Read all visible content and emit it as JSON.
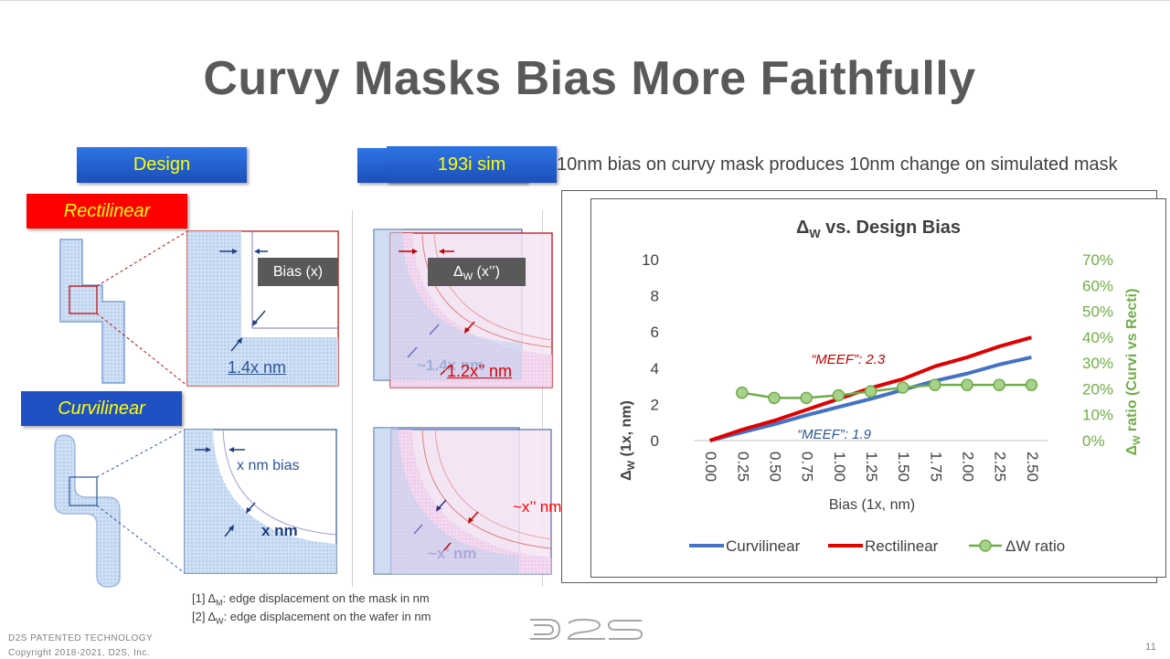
{
  "slide": {
    "title": "Curvy Masks Bias More Faithfully",
    "subtitle": "10nm bias on curvy mask produces 10nm change on simulated mask",
    "page_number": "11",
    "footer_line1": "D2S PATENTED TECHNOLOGY",
    "footer_line2": "Copyright 2018-2021, D2S, Inc.",
    "logo_text": "D2S"
  },
  "columns": {
    "design_label": "Design",
    "sim_label": "193i sim"
  },
  "rows": {
    "rect_label": "Rectilinear",
    "curv_label": "Curvilinear"
  },
  "annotations": {
    "bias_x": "Bias (x)",
    "dw_x_sym": "Δ",
    "dw_x_sub": "W",
    "dw_x_rest": " (x’’)",
    "rect_design_value": "1.4x nm",
    "rect_sim_ghost": "~1.4x nm",
    "rect_sim_value": "1.2x’’ nm",
    "curv_bias": "x nm bias",
    "curv_design_value": "x nm",
    "curv_sim_red": "~x’’ nm",
    "curv_sim_ghost": "~x’ nm"
  },
  "notes": {
    "n1_prefix": "[1] Δ",
    "n1_sub": "M",
    "n1_rest": ": edge displacement on the mask in nm",
    "n2_prefix": "[2] Δ",
    "n2_sub": "W",
    "n2_rest": ": edge displacement on the wafer in nm"
  },
  "chart_data": {
    "type": "line",
    "title_main": "Δ",
    "title_sub": "W",
    "title_rest": " vs. Design Bias",
    "xlabel": "Bias (1x, nm)",
    "ylabel_main": "Δ",
    "ylabel_sub": "W",
    "ylabel_rest": " (1x, nm)",
    "y2label_main": "Δ",
    "y2label_sub": "W",
    "y2label_rest": " ratio (Curvi vs Recti)",
    "categories": [
      "0.00",
      "0.25",
      "0.50",
      "0.75",
      "1.00",
      "1.25",
      "1.50",
      "1.75",
      "2.00",
      "2.25",
      "2.50"
    ],
    "ylim": [
      0,
      10
    ],
    "yticks": [
      "0",
      "2",
      "4",
      "6",
      "8",
      "10"
    ],
    "y2lim": [
      0,
      70
    ],
    "y2ticks": [
      "0%",
      "10%",
      "20%",
      "30%",
      "40%",
      "50%",
      "60%",
      "70%"
    ],
    "series": [
      {
        "name": "Curvilinear",
        "axis": "left",
        "color": "#4472c4",
        "values": [
          0,
          0.45,
          0.9,
          1.4,
          1.85,
          2.3,
          2.8,
          3.3,
          3.7,
          4.2,
          4.6
        ]
      },
      {
        "name": "Rectilinear",
        "axis": "left",
        "color": "#e00000",
        "values": [
          0,
          0.6,
          1.1,
          1.7,
          2.3,
          2.9,
          3.4,
          4.1,
          4.6,
          5.2,
          5.7
        ]
      },
      {
        "name": "ΔW ratio",
        "axis": "right",
        "color": "#70ad47",
        "values": [
          null,
          18.5,
          16.5,
          16.5,
          17.5,
          19,
          20.5,
          21.5,
          21.5,
          21.5,
          21.5
        ]
      }
    ],
    "annotations": [
      {
        "text": "“MEEF”: 2.3",
        "color": "#c00000",
        "series": "Rectilinear"
      },
      {
        "text": "“MEEF”: 1.9",
        "color": "#2f5597",
        "series": "Curvilinear"
      }
    ],
    "legend": "bottom",
    "grid": false
  }
}
